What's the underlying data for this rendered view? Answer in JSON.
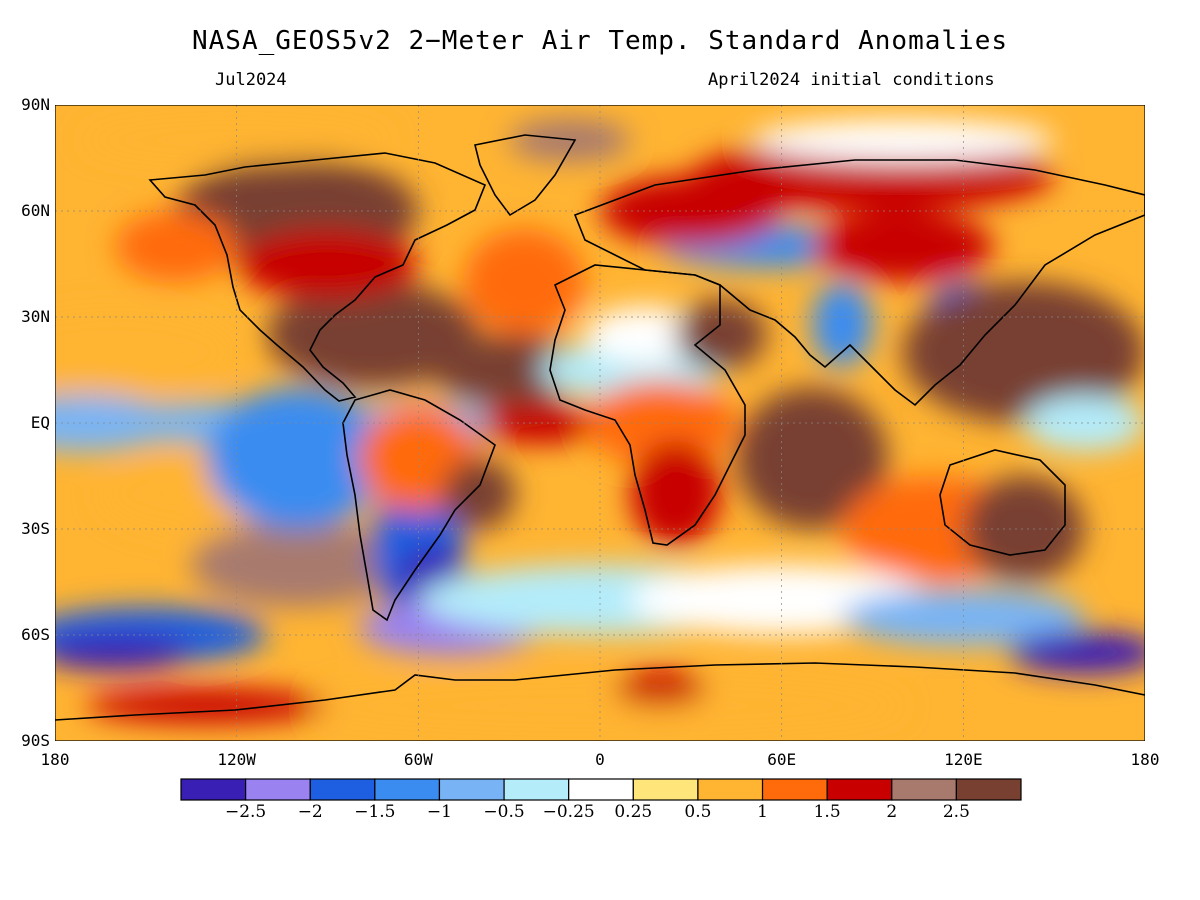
{
  "header": {
    "title": "NASA_GEOS5v2 2−Meter Air Temp. Standard Anomalies",
    "valid_month": "Jul2024",
    "init_conditions": "April2024 initial conditions"
  },
  "axes": {
    "lat_labels": [
      "90N",
      "60N",
      "30N",
      "EQ",
      "30S",
      "60S",
      "90S"
    ],
    "lon_labels": [
      "180",
      "120W",
      "60W",
      "0",
      "60E",
      "120E",
      "180"
    ]
  },
  "chart_data": {
    "type": "heatmap",
    "title": "NASA_GEOS5v2 2−Meter Air Temp. Standard Anomalies",
    "projection": "equirectangular",
    "xlim": [
      -180,
      180
    ],
    "ylim": [
      -90,
      90
    ],
    "grid": true,
    "legend_placement": "bottom",
    "colorbar": {
      "colors": [
        "#3a1fb4",
        "#9a82f0",
        "#1e5ee0",
        "#3a8cf0",
        "#78b4f5",
        "#b4ecfa",
        "#ffffff",
        "#ffe57a",
        "#ffb432",
        "#ff6a0a",
        "#c80000",
        "#a87a6e",
        "#784030"
      ],
      "labels": [
        "−2.5",
        "−2",
        "−1.5",
        "−1",
        "−0.5",
        "−0.25",
        "0.25",
        "0.5",
        "1",
        "1.5",
        "2",
        "2.5"
      ]
    }
  }
}
